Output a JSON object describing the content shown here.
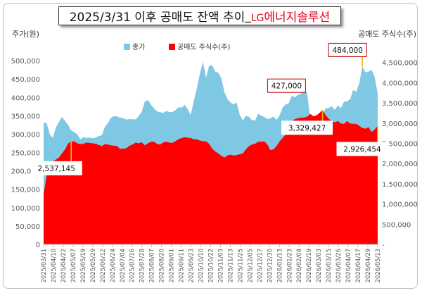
{
  "title": {
    "main": "2025/3/31 이후 공매도 잔액 추이",
    "underscore": "_",
    "company_latin": "LG",
    "company_rest": "에너지솔루션"
  },
  "chart_data": {
    "type": "area",
    "left_axis": {
      "label": "주가(원)",
      "min": 0,
      "max": 550000,
      "step": 50000,
      "ticks": [
        "0",
        "50,000",
        "100,000",
        "150,000",
        "200,000",
        "250,000",
        "300,000",
        "350,000",
        "400,000",
        "450,000",
        "500,000"
      ]
    },
    "right_axis": {
      "label": "공매도 주식수(주)",
      "min": 0,
      "max": 5000000,
      "step": 500000,
      "ticks": [
        "-",
        "500,000",
        "1,000,000",
        "1,500,000",
        "2,000,000",
        "2,500,000",
        "3,000,000",
        "3,500,000",
        "4,000,000",
        "4,500,000"
      ]
    },
    "x_tick_labels": [
      "2025/03/31",
      "2025/04/10",
      "2025/04/22",
      "2025/05/07",
      "2025/05/19",
      "2025/05/29",
      "2025/06/12",
      "2025/06/24",
      "2025/07/04",
      "2025/07/16",
      "2025/07/28",
      "2025/08/07",
      "2025/08/20",
      "2025/09/01",
      "2025/09/11",
      "2025/09/23",
      "2025/10/10",
      "2025/10/22",
      "2025/11/03",
      "2025/11/13",
      "2025/11/25",
      "2025/12/05",
      "2025/12/17",
      "2025/12/30",
      "2026/01/13",
      "2026/01/23",
      "2026/02/04",
      "2026/02/19",
      "2026/03/03",
      "2026/03/15",
      "2026/03/26",
      "2026/04/07",
      "2026/04/17",
      "2026/04/29",
      "2026/05/13"
    ],
    "legend": [
      {
        "name": "종가",
        "color": "#7ec8e3"
      },
      {
        "name": "공매도 주식수(주)",
        "color": "#ff0000"
      }
    ],
    "legend_placement": "top",
    "grid": false,
    "series": [
      {
        "name": "종가",
        "axis": "left",
        "color": "#7ec8e3",
        "values": [
          331000,
          330000,
          300000,
          290000,
          318000,
          333000,
          347000,
          336000,
          325000,
          310000,
          305000,
          300000,
          286000,
          292000,
          290000,
          291000,
          289000,
          291000,
          295000,
          297000,
          320000,
          330000,
          345000,
          349000,
          348000,
          345000,
          343000,
          340000,
          341000,
          341000,
          340000,
          349000,
          360000,
          388000,
          393000,
          381000,
          370000,
          362000,
          360000,
          358000,
          363000,
          360000,
          360000,
          365000,
          373000,
          372000,
          380000,
          368000,
          352000,
          390000,
          425000,
          464000,
          497000,
          453000,
          486000,
          487000,
          470000,
          467000,
          452000,
          414000,
          395000,
          386000,
          381000,
          386000,
          352000,
          337000,
          350000,
          347000,
          338000,
          337000,
          356000,
          350000,
          347000,
          341000,
          343000,
          348000,
          339000,
          351000,
          373000,
          381000,
          384000,
          405000,
          400000,
          407000,
          410000,
          427000,
          410000,
          341000,
          345000,
          340000,
          355000,
          352000,
          370000,
          371000,
          376000,
          366000,
          378000,
          371000,
          388000,
          389000,
          395000,
          420000,
          415000,
          439000,
          484000,
          468000,
          470000,
          475000,
          456000,
          410000
        ]
      },
      {
        "name": "공매도 주식수(주)",
        "axis": "right",
        "color": "#ff0000",
        "values": [
          1250000,
          1700000,
          1950000,
          2050000,
          2100000,
          2150000,
          2250000,
          2350000,
          2500000,
          2537145,
          2550000,
          2500000,
          2480000,
          2490000,
          2520000,
          2510000,
          2500000,
          2490000,
          2460000,
          2430000,
          2480000,
          2470000,
          2450000,
          2440000,
          2430000,
          2360000,
          2370000,
          2380000,
          2440000,
          2470000,
          2520000,
          2500000,
          2530000,
          2450000,
          2500000,
          2540000,
          2540000,
          2490000,
          2470000,
          2520000,
          2540000,
          2520000,
          2510000,
          2550000,
          2600000,
          2630000,
          2650000,
          2640000,
          2630000,
          2600000,
          2600000,
          2570000,
          2550000,
          2550000,
          2490000,
          2370000,
          2300000,
          2250000,
          2190000,
          2150000,
          2200000,
          2220000,
          2200000,
          2210000,
          2230000,
          2250000,
          2350000,
          2430000,
          2470000,
          2490000,
          2540000,
          2540000,
          2550000,
          2470000,
          2330000,
          2350000,
          2430000,
          2550000,
          2630000,
          2720000,
          2860000,
          3050000,
          3100000,
          3120000,
          3130000,
          3140000,
          3160000,
          3230000,
          3170000,
          3190000,
          3250000,
          3329427,
          3200000,
          3110000,
          3050000,
          3020000,
          3050000,
          2990000,
          2980000,
          3050000,
          2990000,
          2980000,
          2980000,
          2930000,
          2880000,
          2860000,
          2900000,
          2780000,
          2840000,
          2926454
        ]
      }
    ],
    "annotations": [
      {
        "text": "427,000",
        "series": "종가",
        "index": 85
      },
      {
        "text": "484,000",
        "series": "종가",
        "index": 104
      },
      {
        "text": "2,537,145",
        "series": "공매도 주식수(주)",
        "index": 9
      },
      {
        "text": "3,329,427",
        "series": "공매도 주식수(주)",
        "index": 91
      },
      {
        "text": "2,926,454",
        "series": "공매도 주식수(주)",
        "index": 109
      }
    ]
  }
}
